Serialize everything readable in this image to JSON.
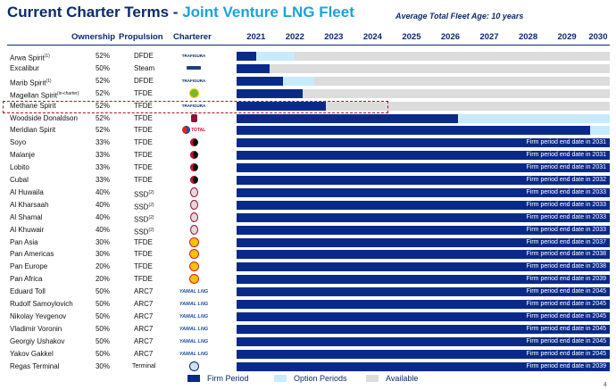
{
  "title": {
    "main": "Current Charter Terms - ",
    "accent": "Joint Venture LNG Fleet"
  },
  "average_age": "Average Total Fleet Age: 10 years",
  "headers": {
    "ownership": "Ownership",
    "propulsion": "Propulsion",
    "charterer": "Charterer"
  },
  "colors": {
    "firm": "#0a2a8a",
    "option": "#c7ebfb",
    "available": "#dcdcdc",
    "title": "#0a2a6b",
    "accent": "#1aa3d9",
    "highlight": "#b01020"
  },
  "legend": [
    {
      "label": "Firm Period",
      "key": "firm"
    },
    {
      "label": "Option Periods",
      "key": "option"
    },
    {
      "label": "Available",
      "key": "available"
    }
  ],
  "footnote": "",
  "page_number": "4",
  "chart_data": {
    "type": "bar",
    "orientation": "horizontal-timeline",
    "x_axis": [
      "2021",
      "2022",
      "2023",
      "2024",
      "2025",
      "2026",
      "2027",
      "2028",
      "2029",
      "2030"
    ],
    "xlim": [
      2021,
      2030.6
    ],
    "highlighted_vessel": "Methane Spirit",
    "vessels": [
      {
        "name": "Arwa Spirit",
        "sup": "(1)",
        "ownership": "52%",
        "propulsion": "DFDE",
        "prop_sup": "",
        "charterer": "TRAFIGURA",
        "charterer_icon": "trafigura-logo",
        "firm_end": 2021.5,
        "option_end": 2022.5,
        "note": ""
      },
      {
        "name": "Excalibur",
        "sup": "",
        "ownership": "50%",
        "propulsion": "Steam",
        "prop_sup": "",
        "charterer": "",
        "charterer_icon": "charterer-logo",
        "firm_end": 2021.85,
        "option_end": null,
        "note": ""
      },
      {
        "name": "Marib Spirit",
        "sup": "(1)",
        "ownership": "52%",
        "propulsion": "DFDE",
        "prop_sup": "",
        "charterer": "TRAFIGURA",
        "charterer_icon": "trafigura-logo",
        "firm_end": 2022.2,
        "option_end": 2023.0,
        "note": ""
      },
      {
        "name": "Magellan Spirit",
        "sup": "(in-charter)",
        "ownership": "52%",
        "propulsion": "TFDE",
        "prop_sup": "",
        "charterer": "",
        "charterer_icon": "bp-logo",
        "firm_end": 2022.7,
        "option_end": null,
        "note": ""
      },
      {
        "name": "Methane Spirit",
        "sup": "",
        "ownership": "52%",
        "propulsion": "TFDE",
        "prop_sup": "",
        "charterer": "TRAFIGURA",
        "charterer_icon": "trafigura-logo",
        "firm_end": 2023.3,
        "option_end": null,
        "note": ""
      },
      {
        "name": "Woodside Donaldson",
        "sup": "",
        "ownership": "52%",
        "propulsion": "TFDE",
        "prop_sup": "",
        "charterer": "",
        "charterer_icon": "woodside-logo",
        "firm_end": 2026.7,
        "option_end": 2030.6,
        "note": ""
      },
      {
        "name": "Meridian Spirit",
        "sup": "",
        "ownership": "52%",
        "propulsion": "TFDE",
        "prop_sup": "",
        "charterer": "TOTAL",
        "charterer_icon": "total-logo",
        "firm_end": 2030.1,
        "option_end": 2030.6,
        "note": ""
      },
      {
        "name": "Soyo",
        "sup": "",
        "ownership": "33%",
        "propulsion": "TFDE",
        "prop_sup": "",
        "charterer": "",
        "charterer_icon": "angola-lng-logo",
        "firm_end": 2030.6,
        "option_end": null,
        "note": "Firm period end date in 2031"
      },
      {
        "name": "Malanje",
        "sup": "",
        "ownership": "33%",
        "propulsion": "TFDE",
        "prop_sup": "",
        "charterer": "",
        "charterer_icon": "angola-lng-logo",
        "firm_end": 2030.6,
        "option_end": null,
        "note": "Firm period end date in 2031"
      },
      {
        "name": "Lobito",
        "sup": "",
        "ownership": "33%",
        "propulsion": "TFDE",
        "prop_sup": "",
        "charterer": "",
        "charterer_icon": "angola-lng-logo",
        "firm_end": 2030.6,
        "option_end": null,
        "note": "Firm period end date in 2031"
      },
      {
        "name": "Cubal",
        "sup": "",
        "ownership": "33%",
        "propulsion": "TFDE",
        "prop_sup": "",
        "charterer": "",
        "charterer_icon": "angola-lng-logo",
        "firm_end": 2030.6,
        "option_end": null,
        "note": "Firm period end date in 2032"
      },
      {
        "name": "Al Huwaila",
        "sup": "",
        "ownership": "40%",
        "propulsion": "SSD",
        "prop_sup": "(2)",
        "charterer": "",
        "charterer_icon": "rasgas-logo",
        "firm_end": 2030.6,
        "option_end": null,
        "note": "Firm period end date in 2033"
      },
      {
        "name": "Al Kharsaah",
        "sup": "",
        "ownership": "40%",
        "propulsion": "SSD",
        "prop_sup": "(2)",
        "charterer": "",
        "charterer_icon": "rasgas-logo",
        "firm_end": 2030.6,
        "option_end": null,
        "note": "Firm period end date in 2033"
      },
      {
        "name": "Al Shamal",
        "sup": "",
        "ownership": "40%",
        "propulsion": "SSD",
        "prop_sup": "(2)",
        "charterer": "",
        "charterer_icon": "rasgas-logo",
        "firm_end": 2030.6,
        "option_end": null,
        "note": "Firm period end date in 2033"
      },
      {
        "name": "Al Khuwair",
        "sup": "",
        "ownership": "40%",
        "propulsion": "SSD",
        "prop_sup": "(2)",
        "charterer": "",
        "charterer_icon": "rasgas-logo",
        "firm_end": 2030.6,
        "option_end": null,
        "note": "Firm period end date in 2033"
      },
      {
        "name": "Pan Asia",
        "sup": "",
        "ownership": "30%",
        "propulsion": "TFDE",
        "prop_sup": "",
        "charterer": "",
        "charterer_icon": "shell-logo",
        "firm_end": 2030.6,
        "option_end": null,
        "note": "Firm period end date in 2037"
      },
      {
        "name": "Pan Americas",
        "sup": "",
        "ownership": "30%",
        "propulsion": "TFDE",
        "prop_sup": "",
        "charterer": "",
        "charterer_icon": "shell-logo",
        "firm_end": 2030.6,
        "option_end": null,
        "note": "Firm period end date in 2038"
      },
      {
        "name": "Pan Europe",
        "sup": "",
        "ownership": "20%",
        "propulsion": "TFDE",
        "prop_sup": "",
        "charterer": "",
        "charterer_icon": "shell-logo",
        "firm_end": 2030.6,
        "option_end": null,
        "note": "Firm period end date in 2038"
      },
      {
        "name": "Pan Africa",
        "sup": "",
        "ownership": "20%",
        "propulsion": "TFDE",
        "prop_sup": "",
        "charterer": "",
        "charterer_icon": "shell-logo",
        "firm_end": 2030.6,
        "option_end": null,
        "note": "Firm period end date in 2039"
      },
      {
        "name": "Eduard Toll",
        "sup": "",
        "ownership": "50%",
        "propulsion": "ARC7",
        "prop_sup": "",
        "charterer": "YAMAL LNG",
        "charterer_icon": "yamal-lng-logo",
        "firm_end": 2030.6,
        "option_end": null,
        "note": "Firm period end date in 2045"
      },
      {
        "name": "Rudolf Samoylovich",
        "sup": "",
        "ownership": "50%",
        "propulsion": "ARC7",
        "prop_sup": "",
        "charterer": "YAMAL LNG",
        "charterer_icon": "yamal-lng-logo",
        "firm_end": 2030.6,
        "option_end": null,
        "note": "Firm period end date in 2045"
      },
      {
        "name": "Nikolay Yevgenov",
        "sup": "",
        "ownership": "50%",
        "propulsion": "ARC7",
        "prop_sup": "",
        "charterer": "YAMAL LNG",
        "charterer_icon": "yamal-lng-logo",
        "firm_end": 2030.6,
        "option_end": null,
        "note": "Firm period end date in 2045"
      },
      {
        "name": "Vladimir Voronin",
        "sup": "",
        "ownership": "50%",
        "propulsion": "ARC7",
        "prop_sup": "",
        "charterer": "YAMAL LNG",
        "charterer_icon": "yamal-lng-logo",
        "firm_end": 2030.6,
        "option_end": null,
        "note": "Firm period end date in 2045"
      },
      {
        "name": "Georgiy Ushakov",
        "sup": "",
        "ownership": "50%",
        "propulsion": "ARC7",
        "prop_sup": "",
        "charterer": "YAMAL LNG",
        "charterer_icon": "yamal-lng-logo",
        "firm_end": 2030.6,
        "option_end": null,
        "note": "Firm period end date in 2045"
      },
      {
        "name": "Yakov Gakkel",
        "sup": "",
        "ownership": "50%",
        "propulsion": "ARC7",
        "prop_sup": "",
        "charterer": "YAMAL LNG",
        "charterer_icon": "yamal-lng-logo",
        "firm_end": 2030.6,
        "option_end": null,
        "note": "Firm period end date in 2045"
      },
      {
        "name": "Regas Terminal",
        "sup": "",
        "ownership": "30%",
        "propulsion": "Terminal",
        "prop_sup": "",
        "charterer": "",
        "charterer_icon": "terminal-logo",
        "firm_end": 2030.6,
        "option_end": null,
        "note": "Firm period end date in 2039"
      }
    ]
  }
}
